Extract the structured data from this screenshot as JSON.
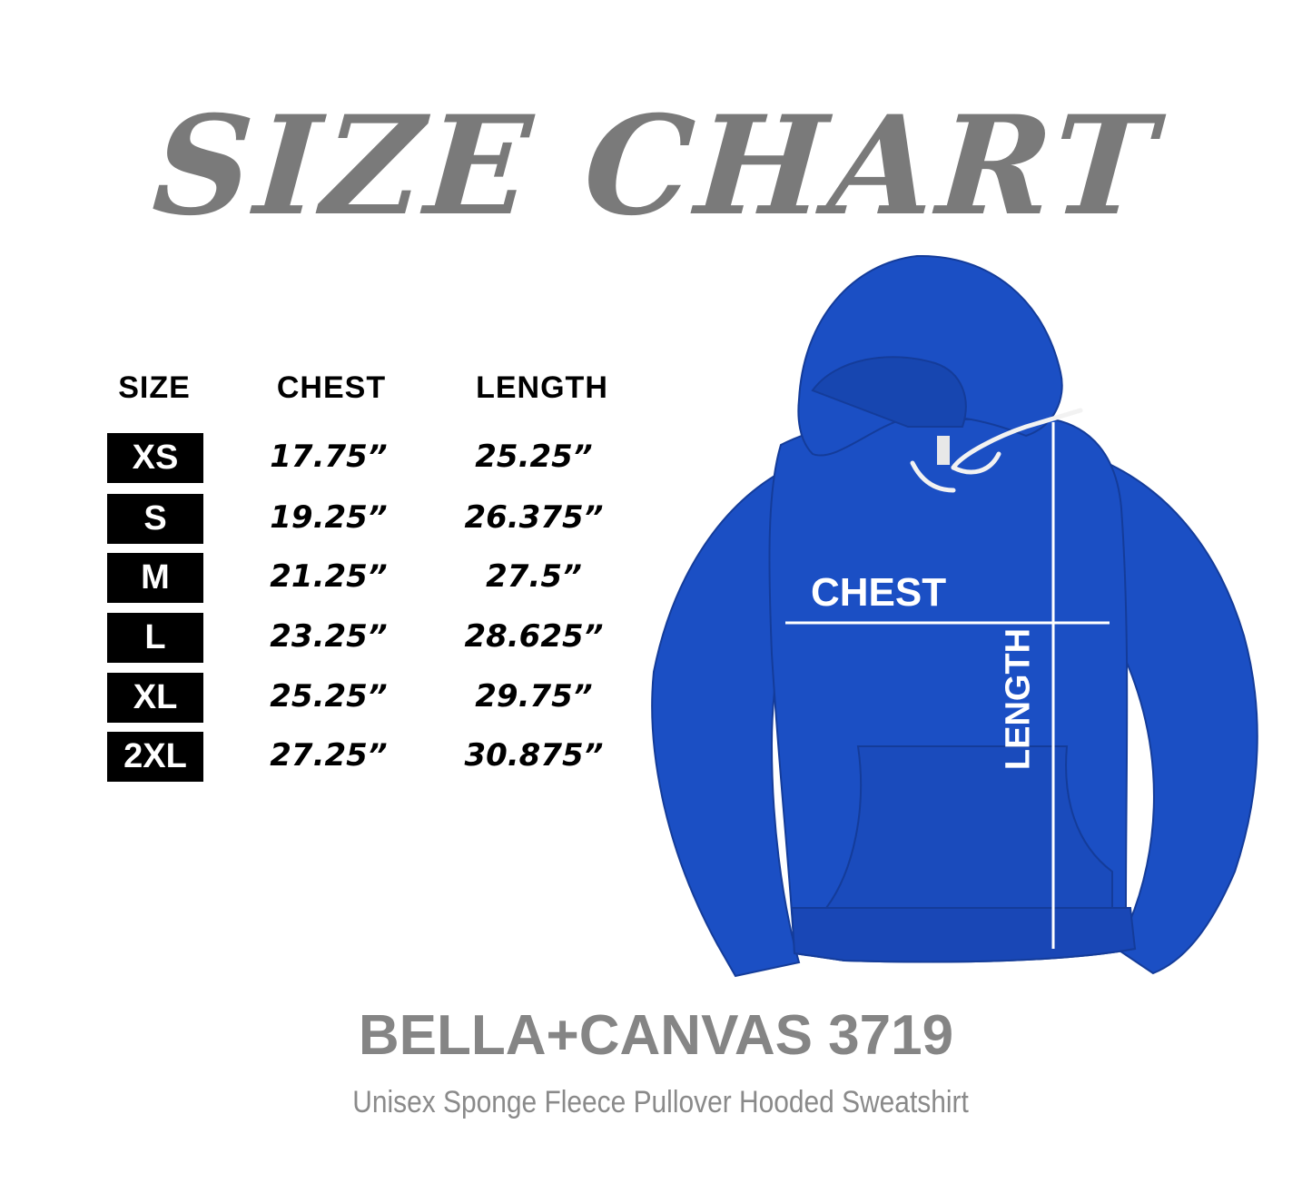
{
  "title": "SIZE CHART",
  "table": {
    "headers": [
      "SIZE",
      "CHEST",
      "LENGTH"
    ],
    "rows": [
      {
        "size": "XS",
        "chest": "17.75”",
        "length": "25.25”"
      },
      {
        "size": "S",
        "chest": "19.25”",
        "length": "26.375”"
      },
      {
        "size": "M",
        "chest": "21.25”",
        "length": "27.5”"
      },
      {
        "size": "L",
        "chest": "23.25”",
        "length": "28.625”"
      },
      {
        "size": "XL",
        "chest": "25.25”",
        "length": "29.75”"
      },
      {
        "size": "2XL",
        "chest": "27.25”",
        "length": "30.875”"
      }
    ]
  },
  "diagram": {
    "chest_label": "CHEST",
    "length_label": "LENGTH",
    "garment_color": "#1b4fc4"
  },
  "product": {
    "name": "BELLA+CANVAS 3719",
    "description": "Unisex Sponge Fleece Pullover Hooded Sweatshirt"
  },
  "colors": {
    "title": "#7a7a7a",
    "size_box": "#000000",
    "product_text": "#858585"
  }
}
